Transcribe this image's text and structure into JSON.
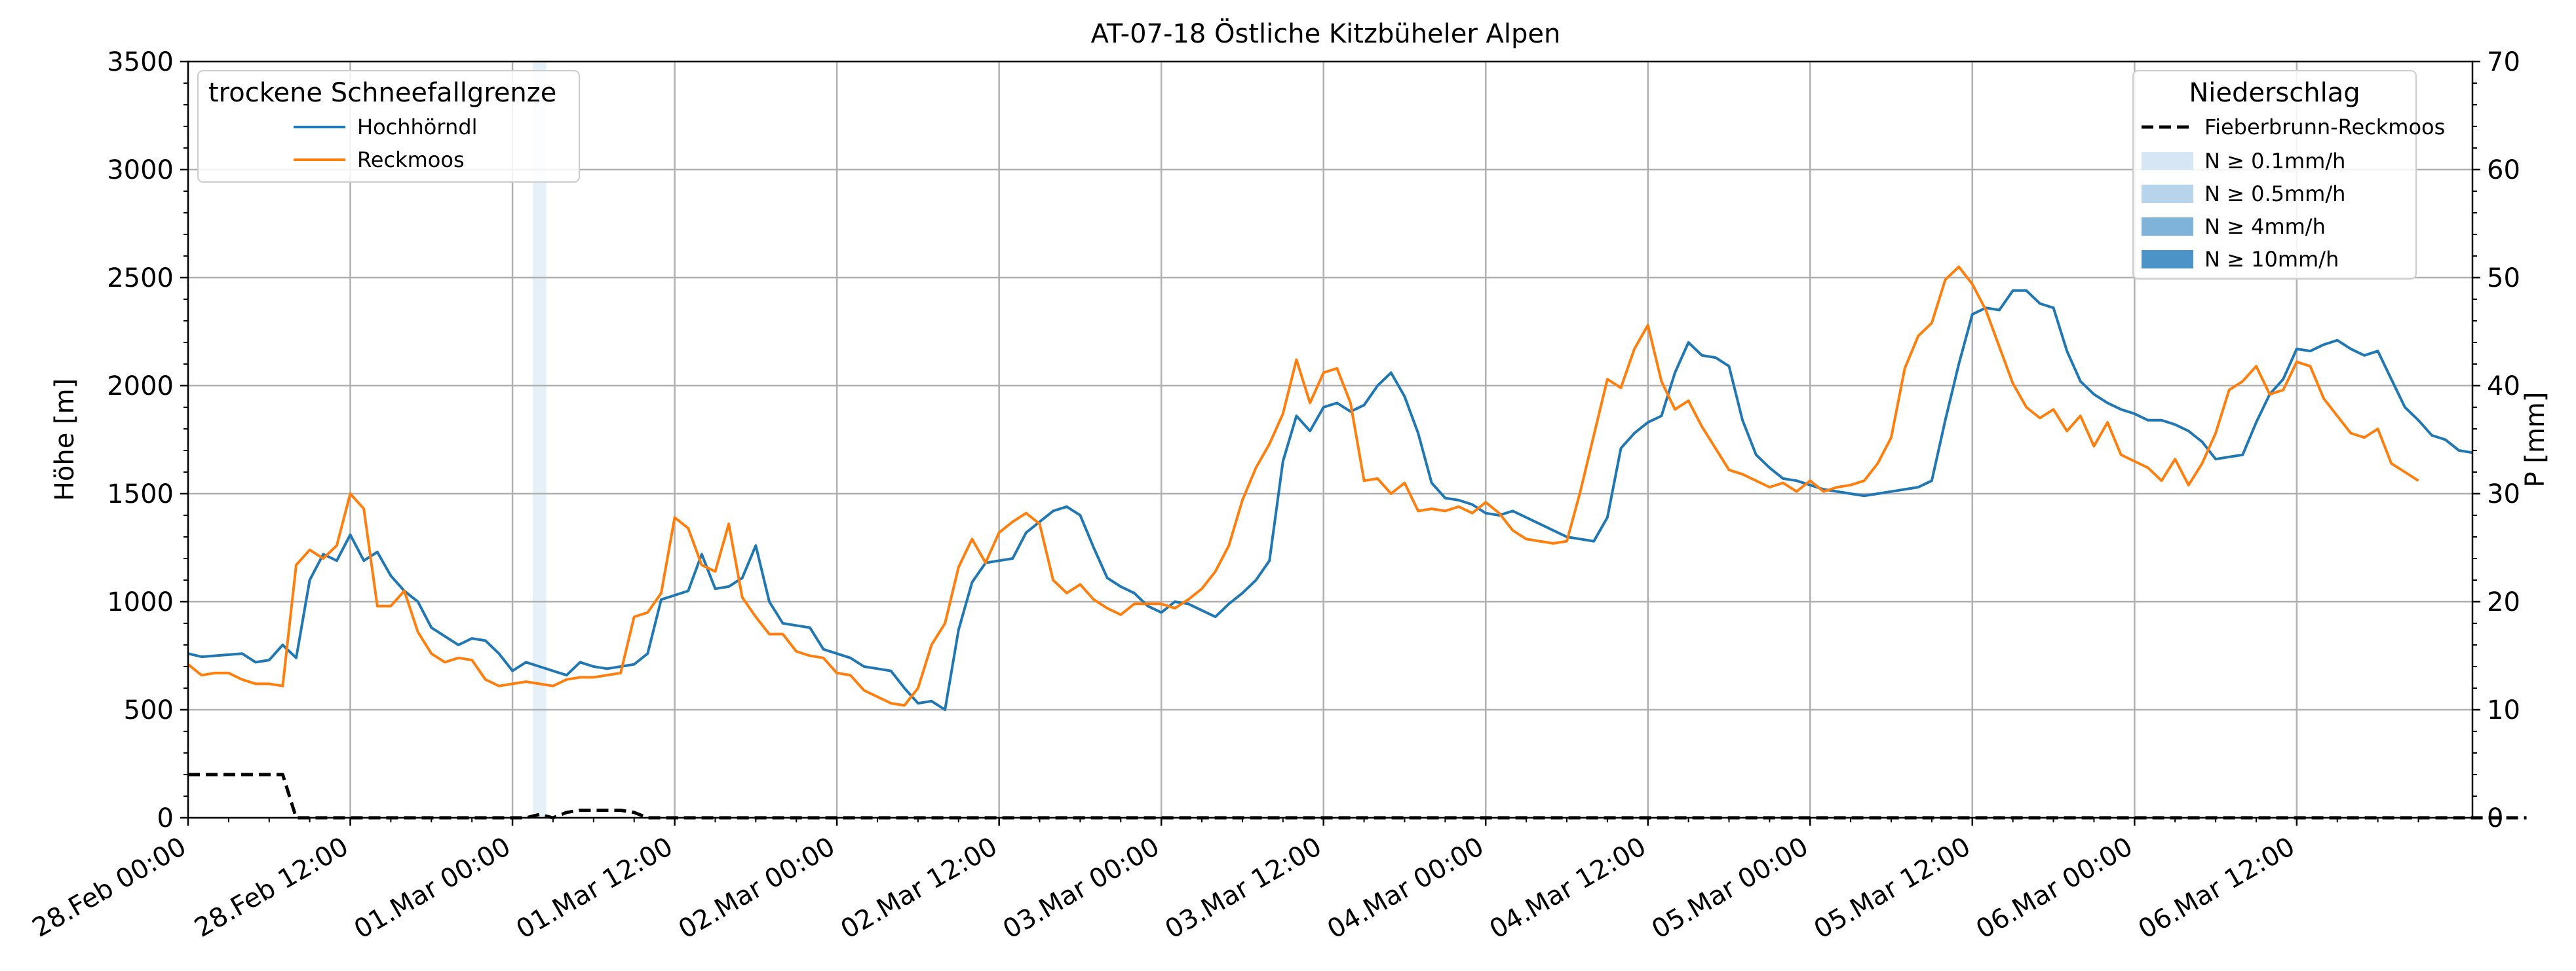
{
  "chart_data": {
    "type": "line",
    "title": "AT-07-18 Östliche Kitzbüheler Alpen",
    "xlabel": "",
    "ylabel": "Höhe [m]",
    "y2label": "P [mm]",
    "xlim": [
      "28.Feb 00:00",
      "06.Mar 23:00"
    ],
    "ylim": [
      0,
      3500
    ],
    "y2lim": [
      0,
      70
    ],
    "grid": true,
    "x_tick_labels": [
      "28.Feb 00:00",
      "28.Feb 12:00",
      "01.Mar 00:00",
      "01.Mar 12:00",
      "02.Mar 00:00",
      "02.Mar 12:00",
      "03.Mar 00:00",
      "03.Mar 12:00",
      "04.Mar 00:00",
      "04.Mar 12:00",
      "05.Mar 00:00",
      "05.Mar 12:00",
      "06.Mar 00:00",
      "06.Mar 12:00"
    ],
    "y_ticks": [
      0,
      500,
      1000,
      1500,
      2000,
      2500,
      3000,
      3500
    ],
    "y2_ticks": [
      0,
      10,
      20,
      30,
      40,
      50,
      60,
      70
    ],
    "x_step_hours": 1,
    "series": [
      {
        "name": "Hochhörndl",
        "axis": "left",
        "color": "#1f77b4",
        "values": [
          760,
          745,
          750,
          755,
          760,
          720,
          730,
          800,
          740,
          1100,
          1220,
          1190,
          1310,
          1190,
          1230,
          1120,
          1050,
          1000,
          880,
          840,
          800,
          830,
          820,
          760,
          680,
          720,
          700,
          680,
          660,
          720,
          700,
          690,
          700,
          710,
          760,
          1010,
          1030,
          1050,
          1220,
          1060,
          1070,
          1110,
          1260,
          1000,
          900,
          890,
          880,
          780,
          760,
          740,
          700,
          690,
          680,
          600,
          530,
          540,
          500,
          870,
          1090,
          1180,
          1190,
          1200,
          1320,
          1370,
          1420,
          1440,
          1400,
          1250,
          1110,
          1070,
          1040,
          980,
          950,
          1000,
          990,
          960,
          930,
          990,
          1040,
          1100,
          1190,
          1650,
          1860,
          1790,
          1900,
          1920,
          1880,
          1910,
          2000,
          2060,
          1950,
          1780,
          1550,
          1480,
          1470,
          1450,
          1410,
          1400,
          1420,
          1390,
          1360,
          1330,
          1300,
          1290,
          1280,
          1390,
          1710,
          1780,
          1830,
          1860,
          2060,
          2200,
          2140,
          2130,
          2090,
          1840,
          1680,
          1620,
          1570,
          1560,
          1540,
          1520,
          1510,
          1500,
          1490,
          1500,
          1510,
          1520,
          1530,
          1560,
          1840,
          2100,
          2330,
          2360,
          2350,
          2440,
          2440,
          2380,
          2360,
          2160,
          2020,
          1960,
          1920,
          1890,
          1870,
          1840,
          1840,
          1820,
          1790,
          1740,
          1660,
          1670,
          1680,
          1830,
          1960,
          2030,
          2170,
          2160,
          2190,
          2210,
          2170,
          2140,
          2160,
          2030,
          1900,
          1840,
          1770,
          1750,
          1700,
          1690
        ]
      },
      {
        "name": "Reckmoos",
        "axis": "left",
        "color": "#ff7f0e",
        "values": [
          710,
          660,
          670,
          670,
          640,
          620,
          620,
          610,
          1170,
          1240,
          1200,
          1260,
          1500,
          1430,
          980,
          980,
          1050,
          860,
          760,
          720,
          740,
          730,
          640,
          610,
          620,
          630,
          620,
          610,
          640,
          650,
          650,
          660,
          670,
          930,
          950,
          1040,
          1390,
          1340,
          1170,
          1140,
          1360,
          1020,
          930,
          850,
          850,
          770,
          750,
          740,
          670,
          660,
          590,
          560,
          530,
          520,
          600,
          800,
          900,
          1160,
          1290,
          1180,
          1320,
          1370,
          1410,
          1360,
          1100,
          1040,
          1080,
          1010,
          970,
          940,
          990,
          990,
          990,
          970,
          1010,
          1060,
          1140,
          1260,
          1470,
          1620,
          1730,
          1870,
          2120,
          1920,
          2060,
          2080,
          1920,
          1560,
          1570,
          1500,
          1550,
          1420,
          1430,
          1420,
          1440,
          1410,
          1460,
          1410,
          1330,
          1290,
          1280,
          1270,
          1280,
          1510,
          1770,
          2030,
          1990,
          2170,
          2280,
          2020,
          1890,
          1930,
          1810,
          1710,
          1610,
          1590,
          1560,
          1530,
          1550,
          1510,
          1560,
          1510,
          1530,
          1540,
          1560,
          1640,
          1760,
          2080,
          2230,
          2290,
          2490,
          2550,
          2470,
          2350,
          2180,
          2010,
          1900,
          1850,
          1890,
          1790,
          1860,
          1720,
          1830,
          1680,
          1650,
          1620,
          1560,
          1660,
          1540,
          1640,
          1780,
          1980,
          2020,
          2090,
          1960,
          1980,
          2110,
          2090,
          1940,
          1860,
          1780,
          1760,
          1800,
          1640,
          1600,
          1560
        ]
      },
      {
        "name": "Fieberbrunn-Reckmoos",
        "axis": "right",
        "color": "#000000",
        "dashed": true,
        "values": [
          4,
          4,
          4,
          4,
          4,
          4,
          4,
          4,
          0,
          0,
          0,
          0,
          0,
          0,
          0,
          0,
          0,
          0,
          0,
          0,
          0,
          0,
          0,
          0,
          0,
          0,
          0.3,
          0,
          0.5,
          0.7,
          0.7,
          0.7,
          0.7,
          0.5,
          0,
          0,
          0,
          0,
          0,
          0,
          0,
          0,
          0,
          0,
          0,
          0,
          0,
          0,
          0,
          0,
          0,
          0,
          0,
          0,
          0,
          0,
          0,
          0,
          0,
          0,
          0,
          0,
          0,
          0,
          0,
          0,
          0,
          0,
          0,
          0,
          0,
          0,
          0,
          0,
          0,
          0,
          0,
          0,
          0,
          0,
          0,
          0,
          0,
          0,
          0,
          0,
          0,
          0,
          0,
          0,
          0,
          0,
          0,
          0,
          0,
          0,
          0,
          0,
          0,
          0,
          0,
          0,
          0,
          0,
          0,
          0,
          0,
          0,
          0,
          0,
          0,
          0,
          0,
          0,
          0,
          0,
          0,
          0,
          0,
          0,
          0,
          0,
          0,
          0,
          0,
          0,
          0,
          0,
          0,
          0,
          0,
          0,
          0,
          0,
          0,
          0,
          0,
          0,
          0,
          0,
          0,
          0,
          0,
          0,
          0,
          0,
          0,
          0,
          0,
          0,
          0,
          0,
          0,
          0,
          0,
          0,
          0,
          0,
          0,
          0,
          0,
          0,
          0,
          0,
          0,
          0,
          0,
          0,
          0,
          0,
          0,
          0,
          0,
          0
        ]
      }
    ],
    "precip_bands": [
      {
        "start_hour": 25.5,
        "end_hour": 26.5,
        "level": "N ≥ 0.1mm/h"
      }
    ],
    "legends": {
      "left": {
        "title": "trockene Schneefallgrenze",
        "placement": "top-left",
        "entries": [
          "Hochhörndl",
          "Reckmoos"
        ]
      },
      "right": {
        "title": "Niederschlag",
        "placement": "top-right",
        "entries": [
          {
            "label": "Fieberbrunn-Reckmoos",
            "kind": "dashed-line",
            "color": "#000000"
          },
          {
            "label": "N ≥ 0.1mm/h",
            "kind": "patch",
            "color": "#d6e6f5"
          },
          {
            "label": "N ≥ 0.5mm/h",
            "kind": "patch",
            "color": "#b8d4ec"
          },
          {
            "label": "N ≥ 4mm/h",
            "kind": "patch",
            "color": "#7fb3da"
          },
          {
            "label": "N ≥ 10mm/h",
            "kind": "patch",
            "color": "#4c93c8"
          }
        ]
      }
    }
  }
}
